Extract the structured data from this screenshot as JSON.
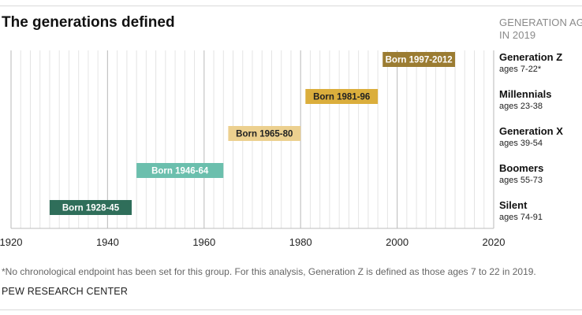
{
  "header": {
    "title": "The generations defined",
    "column_label_line1": "GENERATION AGE",
    "column_label_line2": "IN 2019"
  },
  "chart_data": {
    "type": "bar",
    "orientation": "horizontal",
    "title": "The generations defined",
    "xlim": [
      1920,
      2020
    ],
    "x_ticks": [
      1920,
      1940,
      1960,
      1980,
      2000,
      2020
    ],
    "grid": "vertical lines every 2 years, heavier every 20",
    "series": [
      {
        "name": "Generation Z",
        "label": "Born 1997-2012",
        "start": 1997,
        "end": 2012,
        "ages": "ages 7-22*",
        "color": "#9b7c32"
      },
      {
        "name": "Millennials",
        "label": "Born 1981-96",
        "start": 1981,
        "end": 1996,
        "ages": "ages 23-38",
        "color": "#dbae3c"
      },
      {
        "name": "Generation X",
        "label": "Born 1965-80",
        "start": 1965,
        "end": 1980,
        "ages": "ages 39-54",
        "color": "#ecd08f"
      },
      {
        "name": "Boomers",
        "label": "Born 1946-64",
        "start": 1946,
        "end": 1964,
        "ages": "ages 55-73",
        "color": "#6bbfad"
      },
      {
        "name": "Silent",
        "label": "Born 1928-45",
        "start": 1928,
        "end": 1945,
        "ages": "ages 74-91",
        "color": "#2f6e5a"
      }
    ]
  },
  "footer": {
    "footnote": "*No chronological endpoint has been set for this group. For this analysis, Generation Z is defined as those ages 7 to 22 in 2019.",
    "source": "PEW RESEARCH CENTER"
  }
}
